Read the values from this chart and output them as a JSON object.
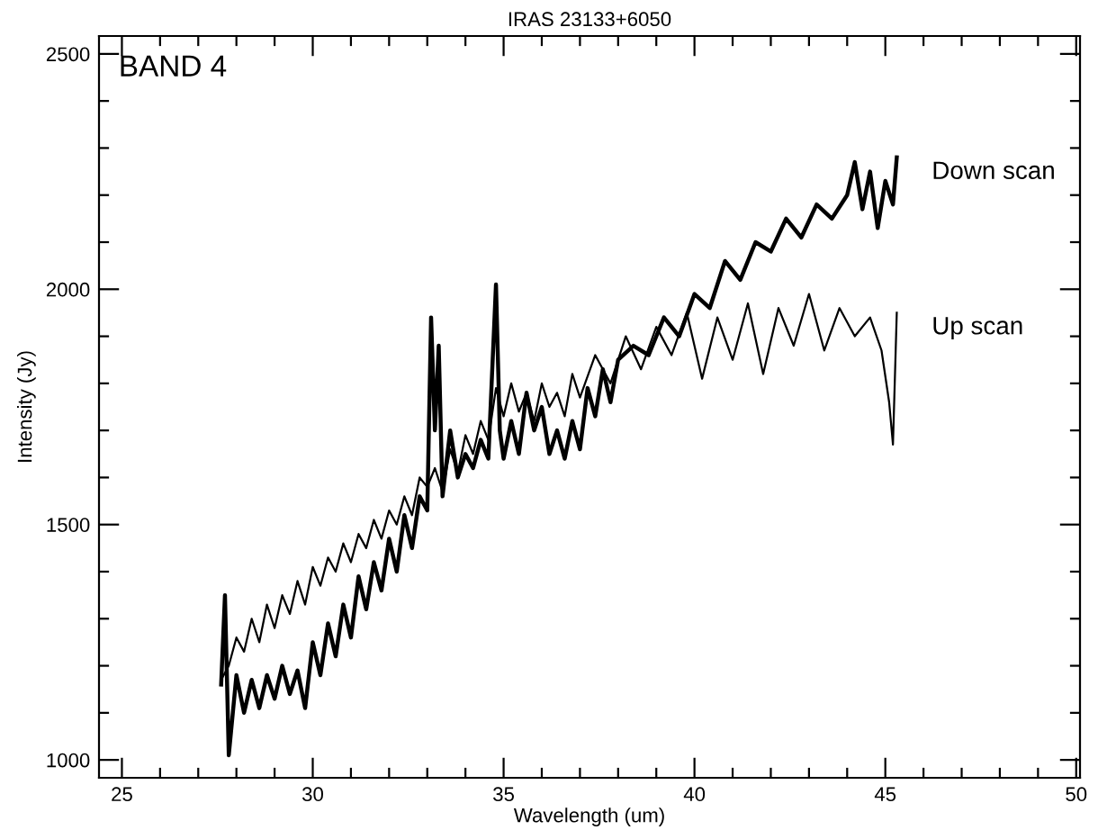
{
  "chart_data": {
    "type": "line",
    "title": "IRAS 23133+6050",
    "xlabel": "Wavelength (um)",
    "ylabel": "Intensity (Jy)",
    "annotations": [
      "BAND 4"
    ],
    "xlim": [
      24.4,
      50.1
    ],
    "ylim": [
      962,
      2538
    ],
    "xticks": [
      25,
      {
        "value": 26,
        "label": null
      },
      {
        "value": 27,
        "label": null
      },
      {
        "value": 28,
        "label": null
      },
      {
        "value": 29,
        "label": null
      },
      30,
      {
        "value": 31,
        "label": null
      },
      {
        "value": 32,
        "label": null
      },
      {
        "value": 33,
        "label": null
      },
      {
        "value": 34,
        "label": null
      },
      35,
      {
        "value": 36,
        "label": null
      },
      {
        "value": 37,
        "label": null
      },
      {
        "value": 38,
        "label": null
      },
      {
        "value": 39,
        "label": null
      },
      40,
      {
        "value": 41,
        "label": null
      },
      {
        "value": 42,
        "label": null
      },
      {
        "value": 43,
        "label": null
      },
      {
        "value": 44,
        "label": null
      },
      45,
      {
        "value": 46,
        "label": null
      },
      {
        "value": 47,
        "label": null
      },
      {
        "value": 48,
        "label": null
      },
      {
        "value": 49,
        "label": null
      },
      50
    ],
    "yticks": [
      1000,
      {
        "value": 1100,
        "label": null
      },
      {
        "value": 1200,
        "label": null
      },
      {
        "value": 1300,
        "label": null
      },
      {
        "value": 1400,
        "label": null
      },
      1500,
      {
        "value": 1600,
        "label": null
      },
      {
        "value": 1700,
        "label": null
      },
      {
        "value": 1800,
        "label": null
      },
      {
        "value": 1900,
        "label": null
      },
      2000,
      {
        "value": 2100,
        "label": null
      },
      {
        "value": 2200,
        "label": null
      },
      {
        "value": 2300,
        "label": null
      },
      {
        "value": 2400,
        "label": null
      },
      2500
    ],
    "grid": false,
    "legend": "right",
    "marker": "none",
    "line_style": "solid",
    "series": [
      {
        "name": "Down scan",
        "color": "#000000",
        "x": [
          27.6,
          27.7,
          27.8,
          28.0,
          28.2,
          28.4,
          28.6,
          28.8,
          29.0,
          29.2,
          29.4,
          29.6,
          29.8,
          30.0,
          30.2,
          30.4,
          30.6,
          30.8,
          31.0,
          31.2,
          31.4,
          31.6,
          31.8,
          32.0,
          32.2,
          32.4,
          32.6,
          32.8,
          33.0,
          33.1,
          33.2,
          33.3,
          33.4,
          33.6,
          33.8,
          34.0,
          34.2,
          34.4,
          34.6,
          34.8,
          34.9,
          35.0,
          35.2,
          35.4,
          35.6,
          35.8,
          36.0,
          36.2,
          36.4,
          36.6,
          36.8,
          37.0,
          37.2,
          37.4,
          37.6,
          37.8,
          38.0,
          38.4,
          38.8,
          39.2,
          39.6,
          40.0,
          40.4,
          40.8,
          41.2,
          41.6,
          42.0,
          42.4,
          42.8,
          43.2,
          43.6,
          44.0,
          44.2,
          44.4,
          44.6,
          44.8,
          45.0,
          45.2,
          45.3
        ],
        "values": [
          1160,
          1350,
          1010,
          1180,
          1100,
          1170,
          1110,
          1180,
          1130,
          1200,
          1140,
          1190,
          1110,
          1250,
          1180,
          1290,
          1220,
          1330,
          1260,
          1390,
          1320,
          1420,
          1360,
          1470,
          1400,
          1520,
          1450,
          1560,
          1530,
          1940,
          1700,
          1880,
          1560,
          1700,
          1600,
          1650,
          1620,
          1680,
          1640,
          2010,
          1700,
          1640,
          1720,
          1650,
          1780,
          1700,
          1750,
          1650,
          1700,
          1640,
          1720,
          1660,
          1790,
          1730,
          1830,
          1760,
          1850,
          1880,
          1860,
          1940,
          1900,
          1990,
          1960,
          2060,
          2020,
          2100,
          2080,
          2150,
          2110,
          2180,
          2150,
          2200,
          2270,
          2170,
          2250,
          2130,
          2230,
          2180,
          2280
        ]
      },
      {
        "name": "Up scan",
        "color": "#000000",
        "x": [
          27.6,
          27.8,
          28.0,
          28.2,
          28.4,
          28.6,
          28.8,
          29.0,
          29.2,
          29.4,
          29.6,
          29.8,
          30.0,
          30.2,
          30.4,
          30.6,
          30.8,
          31.0,
          31.2,
          31.4,
          31.6,
          31.8,
          32.0,
          32.2,
          32.4,
          32.6,
          32.8,
          33.0,
          33.2,
          33.4,
          33.6,
          33.8,
          34.0,
          34.2,
          34.4,
          34.6,
          34.8,
          35.0,
          35.2,
          35.4,
          35.6,
          35.8,
          36.0,
          36.2,
          36.4,
          36.6,
          36.8,
          37.0,
          37.4,
          37.8,
          38.2,
          38.6,
          39.0,
          39.4,
          39.8,
          40.2,
          40.6,
          41.0,
          41.4,
          41.8,
          42.2,
          42.6,
          43.0,
          43.4,
          43.8,
          44.2,
          44.6,
          44.9,
          45.1,
          45.2,
          45.3
        ],
        "values": [
          1170,
          1200,
          1260,
          1230,
          1300,
          1250,
          1330,
          1280,
          1350,
          1310,
          1380,
          1330,
          1410,
          1370,
          1430,
          1400,
          1460,
          1420,
          1480,
          1450,
          1510,
          1470,
          1530,
          1500,
          1560,
          1520,
          1600,
          1580,
          1620,
          1570,
          1660,
          1610,
          1690,
          1650,
          1720,
          1680,
          1790,
          1730,
          1800,
          1740,
          1780,
          1720,
          1800,
          1750,
          1780,
          1730,
          1820,
          1770,
          1860,
          1800,
          1900,
          1830,
          1920,
          1860,
          1950,
          1810,
          1940,
          1850,
          1970,
          1820,
          1960,
          1880,
          1990,
          1870,
          1960,
          1900,
          1940,
          1870,
          1760,
          1670,
          1950
        ]
      }
    ]
  }
}
